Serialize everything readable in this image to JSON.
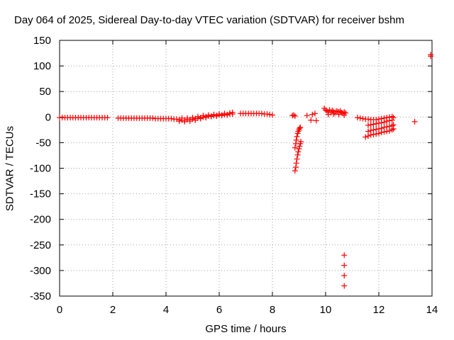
{
  "chart_data": {
    "type": "scatter",
    "title": "Day 064 of 2025, Sidereal Day-to-day VTEC variation (SDTVAR) for receiver bshm",
    "xlabel": "GPS time / hours",
    "ylabel": "SDTVAR / TECUs",
    "xlim": [
      0,
      14
    ],
    "ylim": [
      -350,
      150
    ],
    "xticks": [
      0,
      2,
      4,
      6,
      8,
      10,
      12,
      14
    ],
    "yticks": [
      150,
      100,
      50,
      0,
      -50,
      -100,
      -150,
      -200,
      -250,
      -300,
      -350
    ],
    "grid": true,
    "marker": "+",
    "color": "#ff0000",
    "series": [
      {
        "name": "SDTVAR",
        "points": [
          [
            0.0,
            -1
          ],
          [
            0.1,
            -1
          ],
          [
            0.2,
            -1
          ],
          [
            0.3,
            -1
          ],
          [
            0.4,
            -1
          ],
          [
            0.5,
            -1
          ],
          [
            0.6,
            -1
          ],
          [
            0.7,
            -1
          ],
          [
            0.8,
            -1
          ],
          [
            0.9,
            -1
          ],
          [
            1.0,
            -1
          ],
          [
            1.1,
            -1
          ],
          [
            1.2,
            -1
          ],
          [
            1.3,
            -1
          ],
          [
            1.4,
            -1
          ],
          [
            1.5,
            -1
          ],
          [
            1.6,
            -1
          ],
          [
            1.7,
            -1
          ],
          [
            1.8,
            -1
          ],
          [
            2.2,
            -2
          ],
          [
            2.3,
            -2
          ],
          [
            2.4,
            -2
          ],
          [
            2.5,
            -2
          ],
          [
            2.6,
            -2
          ],
          [
            2.7,
            -2
          ],
          [
            2.8,
            -2
          ],
          [
            2.9,
            -2
          ],
          [
            3.0,
            -2
          ],
          [
            3.1,
            -2
          ],
          [
            3.2,
            -2
          ],
          [
            3.3,
            -2
          ],
          [
            3.4,
            -2
          ],
          [
            3.5,
            -2
          ],
          [
            3.6,
            -3
          ],
          [
            3.7,
            -3
          ],
          [
            3.8,
            -3
          ],
          [
            3.9,
            -3
          ],
          [
            4.0,
            -3
          ],
          [
            4.1,
            -3
          ],
          [
            4.2,
            -3
          ],
          [
            4.3,
            -4
          ],
          [
            4.4,
            -4
          ],
          [
            4.5,
            -5
          ],
          [
            4.6,
            -6
          ],
          [
            4.7,
            -6
          ],
          [
            4.8,
            -5
          ],
          [
            4.9,
            -5
          ],
          [
            5.0,
            -4
          ],
          [
            5.1,
            -3
          ],
          [
            5.2,
            -2
          ],
          [
            5.3,
            -1
          ],
          [
            5.4,
            0
          ],
          [
            5.5,
            1
          ],
          [
            5.6,
            2
          ],
          [
            5.7,
            2
          ],
          [
            5.8,
            3
          ],
          [
            5.9,
            3
          ],
          [
            6.0,
            4
          ],
          [
            6.1,
            4
          ],
          [
            6.2,
            5
          ],
          [
            6.3,
            5
          ],
          [
            6.4,
            6
          ],
          [
            6.5,
            6
          ],
          [
            4.5,
            -8
          ],
          [
            4.7,
            -9
          ],
          [
            4.9,
            -8
          ],
          [
            5.1,
            -6
          ],
          [
            5.3,
            -3
          ],
          [
            5.5,
            -1
          ],
          [
            5.7,
            1
          ],
          [
            5.9,
            2
          ],
          [
            6.1,
            3
          ],
          [
            6.3,
            4
          ],
          [
            4.6,
            -2
          ],
          [
            4.8,
            -2
          ],
          [
            5.0,
            -1
          ],
          [
            5.2,
            1
          ],
          [
            5.4,
            3
          ],
          [
            5.6,
            4
          ],
          [
            5.8,
            5
          ],
          [
            6.0,
            6
          ],
          [
            6.2,
            7
          ],
          [
            6.4,
            8
          ],
          [
            6.5,
            9
          ],
          [
            6.8,
            7
          ],
          [
            6.9,
            7
          ],
          [
            7.0,
            7
          ],
          [
            7.1,
            7
          ],
          [
            7.2,
            7
          ],
          [
            7.3,
            7
          ],
          [
            7.4,
            7
          ],
          [
            7.5,
            7
          ],
          [
            7.6,
            7
          ],
          [
            7.7,
            6
          ],
          [
            7.8,
            6
          ],
          [
            7.9,
            5
          ],
          [
            8.0,
            4
          ],
          [
            8.75,
            3
          ],
          [
            8.8,
            4
          ],
          [
            8.85,
            2
          ],
          [
            9.3,
            3
          ],
          [
            9.5,
            5
          ],
          [
            9.6,
            7
          ],
          [
            9.45,
            -6
          ],
          [
            9.65,
            -7
          ],
          [
            9.95,
            17
          ],
          [
            10.0,
            14
          ],
          [
            10.05,
            12
          ],
          [
            10.1,
            10
          ],
          [
            10.15,
            14
          ],
          [
            10.2,
            9
          ],
          [
            10.25,
            13
          ],
          [
            10.3,
            11
          ],
          [
            10.35,
            8
          ],
          [
            10.4,
            12
          ],
          [
            10.45,
            11
          ],
          [
            10.5,
            10
          ],
          [
            10.55,
            12
          ],
          [
            10.6,
            9
          ],
          [
            10.65,
            7
          ],
          [
            10.7,
            10
          ],
          [
            10.75,
            8
          ],
          [
            10.1,
            5
          ],
          [
            10.3,
            6
          ],
          [
            10.5,
            5
          ],
          [
            10.7,
            4
          ],
          [
            8.85,
            -105
          ],
          [
            8.88,
            -98
          ],
          [
            8.9,
            -90
          ],
          [
            8.92,
            -82
          ],
          [
            8.95,
            -74
          ],
          [
            8.97,
            -68
          ],
          [
            9.0,
            -62
          ],
          [
            9.02,
            -57
          ],
          [
            9.05,
            -52
          ],
          [
            9.07,
            -48
          ],
          [
            8.85,
            -60
          ],
          [
            8.88,
            -52
          ],
          [
            8.9,
            -45
          ],
          [
            8.92,
            -38
          ],
          [
            8.95,
            -32
          ],
          [
            8.97,
            -28
          ],
          [
            9.0,
            -25
          ],
          [
            9.02,
            -22
          ],
          [
            9.05,
            -20
          ],
          [
            10.7,
            -270
          ],
          [
            10.7,
            -290
          ],
          [
            10.7,
            -310
          ],
          [
            10.7,
            -330
          ],
          [
            11.2,
            -1
          ],
          [
            11.3,
            -2
          ],
          [
            11.4,
            -3
          ],
          [
            11.5,
            -4
          ],
          [
            11.6,
            -4
          ],
          [
            11.7,
            -5
          ],
          [
            11.8,
            -5
          ],
          [
            11.9,
            -5
          ],
          [
            12.0,
            -4
          ],
          [
            12.1,
            -3
          ],
          [
            12.2,
            -2
          ],
          [
            12.3,
            -1
          ],
          [
            12.4,
            0
          ],
          [
            12.5,
            1
          ],
          [
            12.55,
            -1
          ],
          [
            11.5,
            -39
          ],
          [
            11.6,
            -37
          ],
          [
            11.7,
            -35
          ],
          [
            11.8,
            -34
          ],
          [
            11.9,
            -33
          ],
          [
            12.0,
            -32
          ],
          [
            12.1,
            -30
          ],
          [
            12.2,
            -29
          ],
          [
            12.3,
            -28
          ],
          [
            12.4,
            -27
          ],
          [
            12.5,
            -25
          ],
          [
            12.55,
            -23
          ],
          [
            11.6,
            -28
          ],
          [
            11.7,
            -26
          ],
          [
            11.8,
            -25
          ],
          [
            11.9,
            -24
          ],
          [
            12.0,
            -23
          ],
          [
            12.1,
            -22
          ],
          [
            12.2,
            -20
          ],
          [
            12.3,
            -19
          ],
          [
            12.4,
            -18
          ],
          [
            12.5,
            -17
          ],
          [
            12.55,
            -15
          ],
          [
            11.6,
            -16
          ],
          [
            11.7,
            -15
          ],
          [
            11.8,
            -14
          ],
          [
            11.9,
            -13
          ],
          [
            12.0,
            -12
          ],
          [
            12.1,
            -11
          ],
          [
            12.2,
            -10
          ],
          [
            12.3,
            -8
          ],
          [
            12.4,
            -7
          ],
          [
            12.5,
            -6
          ],
          [
            13.35,
            -9
          ],
          [
            13.95,
            119
          ],
          [
            13.95,
            122
          ]
        ]
      }
    ]
  }
}
